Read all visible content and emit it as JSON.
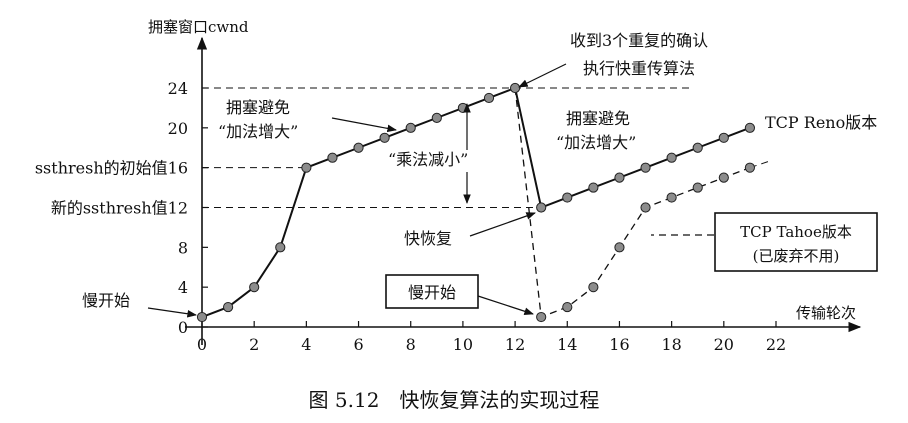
{
  "caption": "图 5.12　快恢复算法的实现过程",
  "chart_data": {
    "type": "line",
    "ylabel": "拥塞窗口cwnd",
    "xlabel": "传输轮次",
    "xlim": [
      0,
      22
    ],
    "ylim": [
      0,
      24
    ],
    "x_ticks": [
      0,
      2,
      4,
      6,
      8,
      10,
      12,
      14,
      16,
      18,
      20,
      22
    ],
    "y_ticks": [
      0,
      4,
      8,
      12,
      16,
      20,
      24
    ],
    "y_tick_labels": [
      "0",
      "4",
      "8",
      "",
      "",
      "20",
      "24"
    ],
    "y_special_labels": [
      {
        "value": 16,
        "text": "ssthresh的初始值16"
      },
      {
        "value": 12,
        "text": "新的ssthresh值12"
      }
    ],
    "series": [
      {
        "name": "TCP Reno版本",
        "style": "solid",
        "points": [
          [
            0,
            1
          ],
          [
            1,
            2
          ],
          [
            2,
            4
          ],
          [
            3,
            8
          ],
          [
            4,
            16
          ],
          [
            5,
            17
          ],
          [
            6,
            18
          ],
          [
            7,
            19
          ],
          [
            8,
            20
          ],
          [
            9,
            21
          ],
          [
            10,
            22
          ],
          [
            11,
            23
          ],
          [
            12,
            24
          ],
          [
            13,
            12
          ],
          [
            14,
            13
          ],
          [
            15,
            14
          ],
          [
            16,
            15
          ],
          [
            17,
            16
          ],
          [
            18,
            17
          ],
          [
            19,
            18
          ],
          [
            20,
            19
          ],
          [
            21,
            20
          ]
        ]
      },
      {
        "name": "TCP Tahoe版本",
        "style": "dashed",
        "points": [
          [
            12,
            24
          ],
          [
            13,
            1
          ],
          [
            14,
            2
          ],
          [
            15,
            4
          ],
          [
            16,
            8
          ],
          [
            17,
            12
          ],
          [
            18,
            13
          ],
          [
            19,
            14
          ],
          [
            20,
            15
          ],
          [
            21,
            16
          ]
        ]
      }
    ],
    "annotations": {
      "slow_start_left": "慢开始",
      "slow_start_box": "慢开始",
      "congestion_avoidance_1": [
        "拥塞避免",
        "“加法增大”"
      ],
      "congestion_avoidance_2": [
        "拥塞避免",
        "“加法增大”"
      ],
      "multiplicative_decrease": "“乘法减小”",
      "fast_recovery": "快恢复",
      "three_acks": [
        "收到3个重复的确认",
        "执行快重传算法"
      ],
      "reno_label": "TCP Reno版本",
      "tahoe_label": [
        "TCP Tahoe版本",
        "(已废弃不用)"
      ]
    }
  }
}
